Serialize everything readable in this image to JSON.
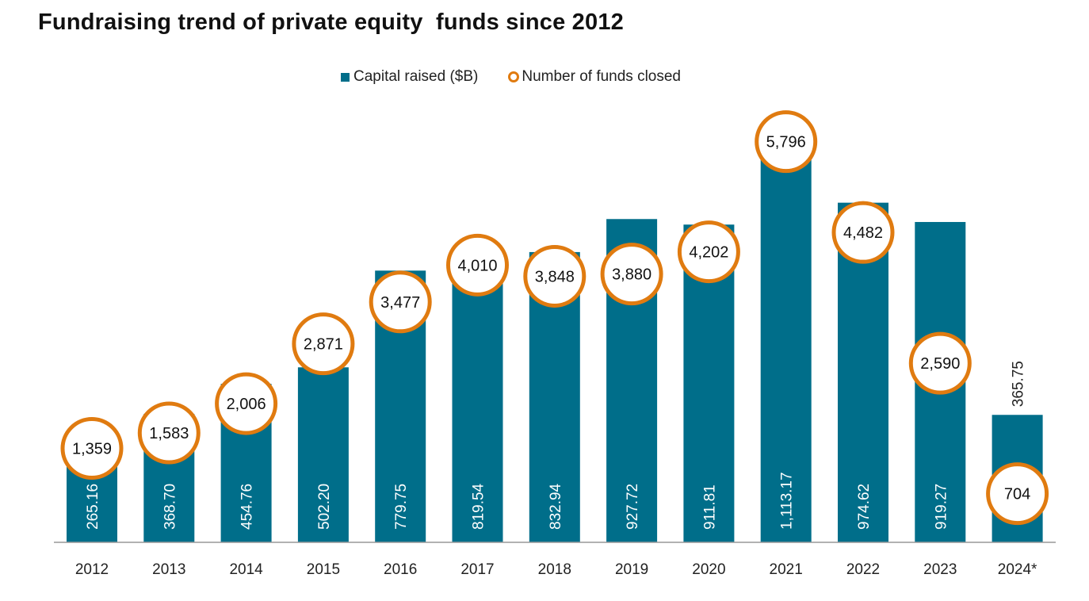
{
  "chart_data": {
    "type": "bar",
    "title": "Fundraising trend of private equity  funds since 2012",
    "categories": [
      "2012",
      "2013",
      "2014",
      "2015",
      "2016",
      "2017",
      "2018",
      "2019",
      "2020",
      "2021",
      "2022",
      "2023",
      "2024*"
    ],
    "series": [
      {
        "name": "Capital raised ($B)",
        "type": "bar",
        "color": "#006e8a",
        "values": [
          265.16,
          368.7,
          454.76,
          502.2,
          779.75,
          819.54,
          832.94,
          927.72,
          911.81,
          1113.17,
          974.62,
          919.27,
          365.75
        ],
        "labels": [
          "265.16",
          "368.70",
          "454.76",
          "502.20",
          "779.75",
          "819.54",
          "832.94",
          "927.72",
          "911.81",
          "1,113.17",
          "974.62",
          "919.27",
          "365.75"
        ]
      },
      {
        "name": "Number of funds closed",
        "type": "circle-marker",
        "color": "#e07b10",
        "values": [
          1359,
          1583,
          2006,
          2871,
          3477,
          4010,
          3848,
          3880,
          4202,
          5796,
          4482,
          2590,
          704
        ],
        "labels": [
          "1,359",
          "1,583",
          "2,006",
          "2,871",
          "3,477",
          "4,010",
          "3,848",
          "3,880",
          "4,202",
          "5,796",
          "4,482",
          "2,590",
          "704"
        ]
      }
    ],
    "xlabel": "",
    "ylabel": "",
    "grid": false,
    "legend": "top-center"
  }
}
